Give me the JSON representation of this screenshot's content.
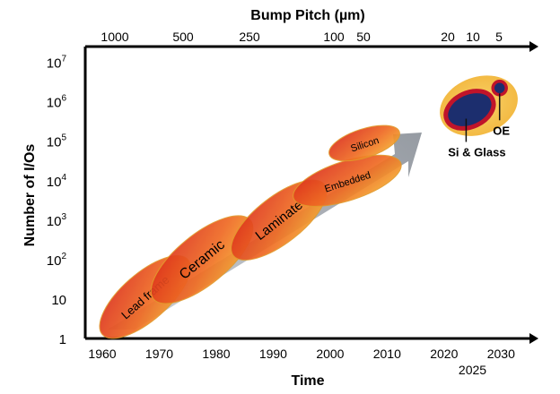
{
  "chart_data": {
    "type": "scatter",
    "xlabel": "Time",
    "x2label": "Bump Pitch (µm)",
    "ylabel": "Number of I/Os",
    "x_ticks": [
      "1960",
      "1970",
      "1980",
      "1990",
      "2000",
      "2010",
      "2020",
      "2025",
      "2030"
    ],
    "x_tick_values": [
      1960,
      1970,
      1980,
      1990,
      2000,
      2010,
      2020,
      2025,
      2030
    ],
    "x2_ticks": [
      "1000",
      "500",
      "250",
      "100",
      "50",
      "20",
      "10",
      "5"
    ],
    "y_ticks": [
      "1",
      "10",
      "10^2",
      "10^3",
      "10^4",
      "10^5",
      "10^6",
      "10^7"
    ],
    "y_scale": "log",
    "xlim": [
      1957,
      2035
    ],
    "ylim_exp": [
      0,
      7.4
    ],
    "series": [
      {
        "name": "Lead frame",
        "label_text": "Lead frame",
        "x_range": [
          1960,
          1975
        ],
        "y_exp_range": [
          0.1,
          2.0
        ]
      },
      {
        "name": "Ceramic",
        "label_text": "Ceramic",
        "x_range": [
          1969,
          1986
        ],
        "y_exp_range": [
          1.0,
          3.0
        ]
      },
      {
        "name": "Laminate",
        "label_text": "Laminate",
        "x_range": [
          1983,
          1999
        ],
        "y_exp_range": [
          2.1,
          3.9
        ]
      },
      {
        "name": "Embedded",
        "label_text": "Embedded",
        "x_range": [
          1994,
          2012
        ],
        "y_exp_range": [
          3.4,
          4.6
        ]
      },
      {
        "name": "Silicon",
        "label_text": "Silicon",
        "x_range": [
          2000,
          2012
        ],
        "y_exp_range": [
          4.6,
          5.3
        ]
      },
      {
        "name": "Si & Glass",
        "label_text": "Si & Glass",
        "x_range": [
          2020,
          2029
        ],
        "y_exp_range": [
          5.2,
          6.4
        ]
      },
      {
        "name": "OE",
        "label_text": "OE",
        "x_range": [
          2028.5,
          2031
        ],
        "y_exp_range": [
          6.1,
          6.6
        ]
      }
    ],
    "colors": {
      "ellipse_core": "#d92a1c",
      "ellipse_edge": "#f7b733",
      "arrow": "#9aa0a8",
      "highlight_bg": "#f5c04a",
      "si_glass_fill": "#1c2e6e",
      "ring": "#c0142a"
    }
  }
}
